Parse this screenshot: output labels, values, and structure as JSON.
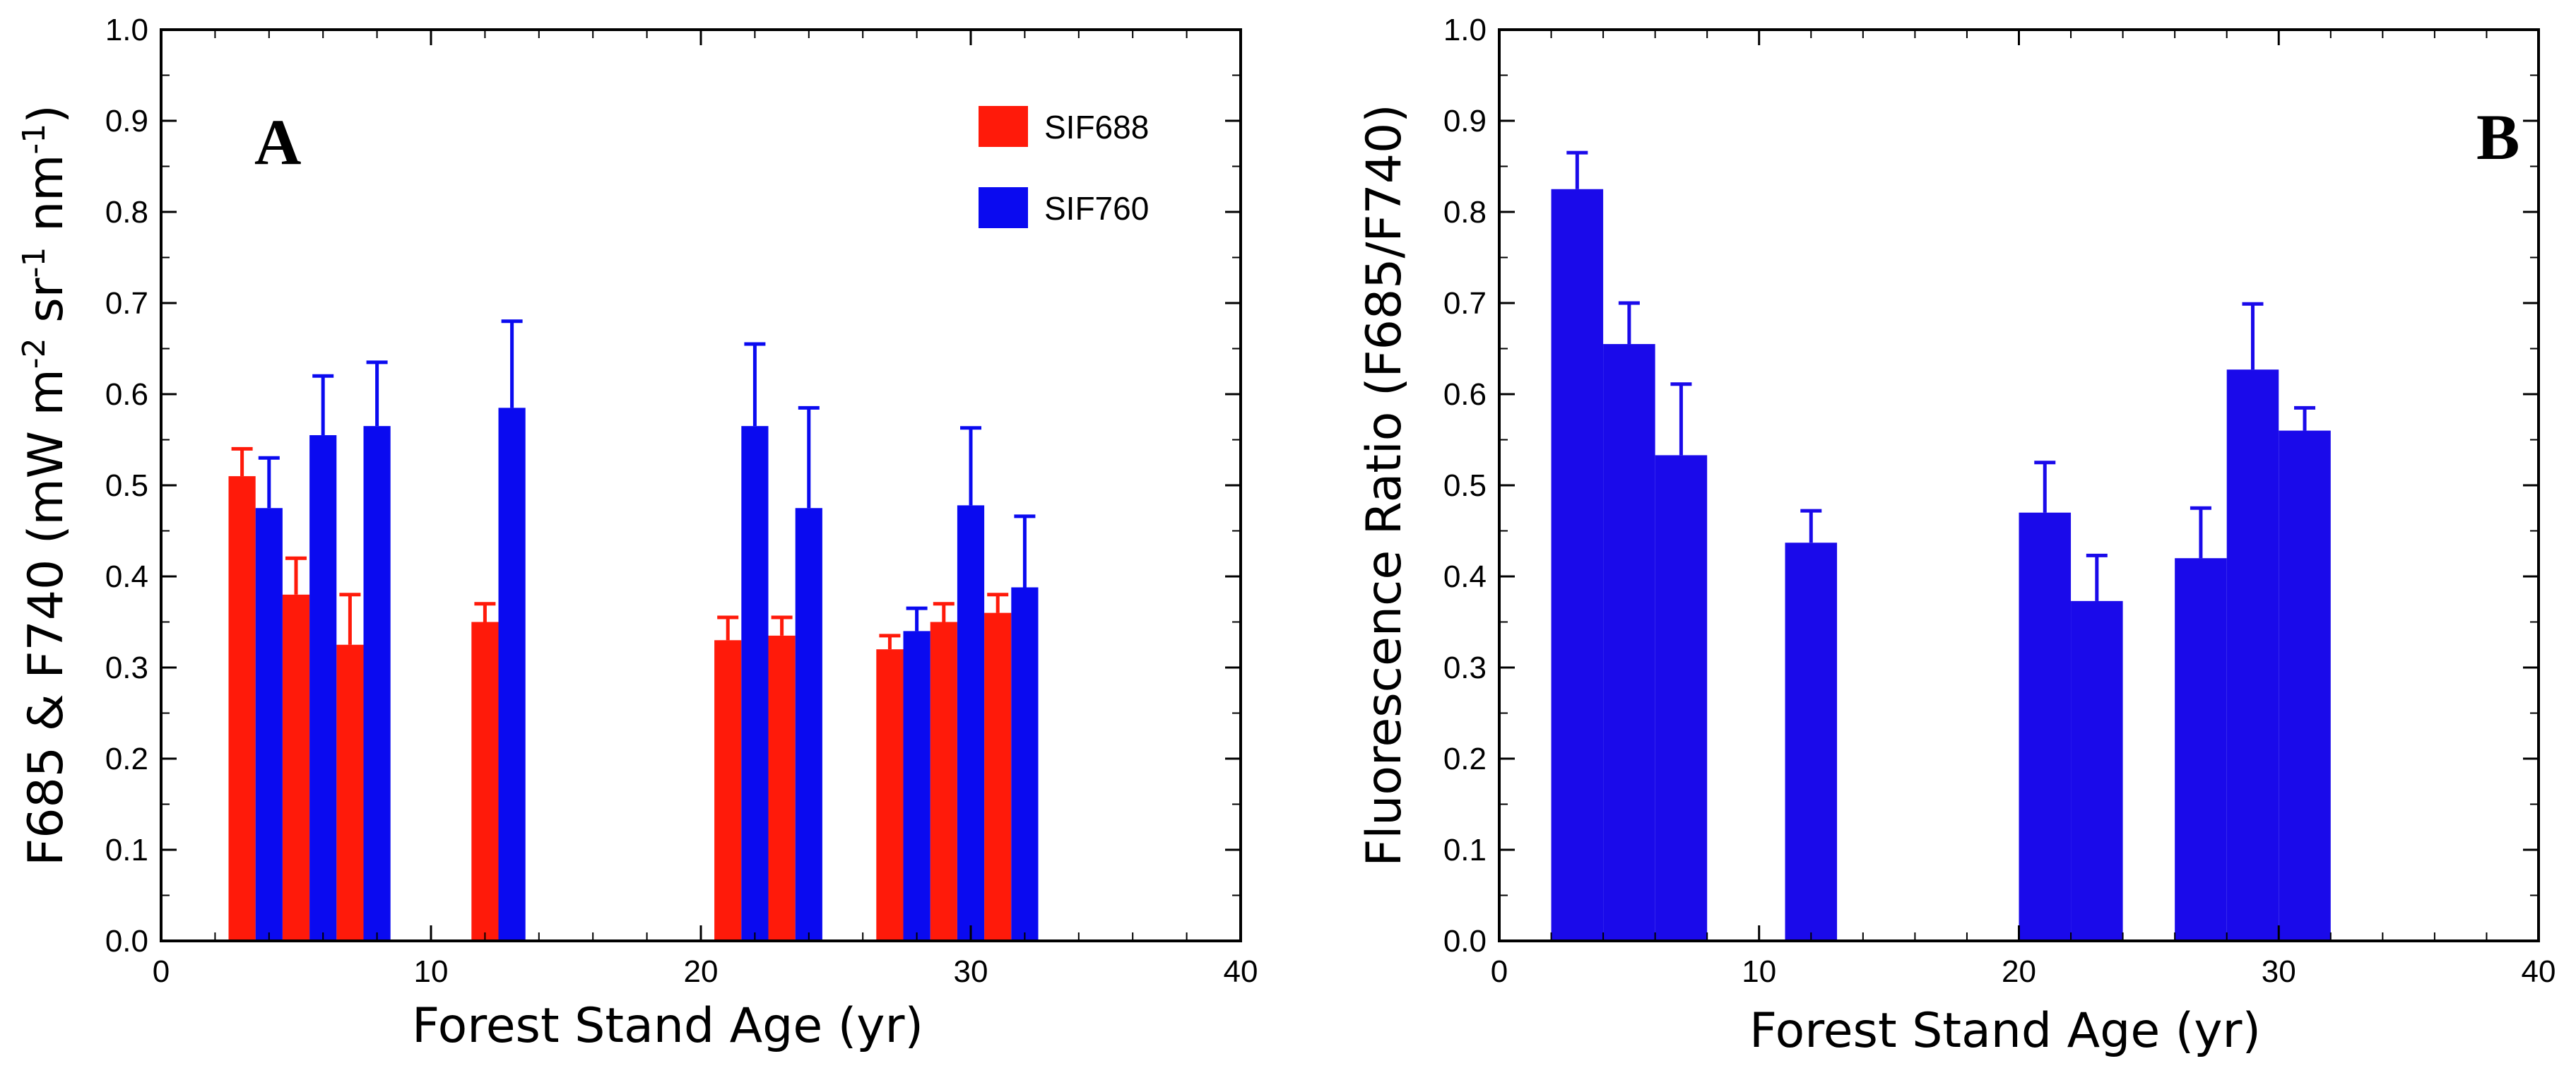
{
  "chart_data": [
    {
      "id": "A",
      "type": "bar",
      "panel_label": "A",
      "xlabel": "Forest Stand Age (yr)",
      "ylabel": "F685 & F740 (mW m⁻² sr⁻¹ nm⁻¹)",
      "xlim": [
        0,
        40
      ],
      "ylim": [
        0,
        1.0
      ],
      "xticks": [
        0,
        10,
        20,
        30,
        40
      ],
      "yticks": [
        0.0,
        0.1,
        0.2,
        0.3,
        0.4,
        0.5,
        0.6,
        0.7,
        0.8,
        0.9,
        1.0
      ],
      "legend": {
        "position": "top-right"
      },
      "bar_width": 1.0,
      "series": [
        {
          "name": "SIF688",
          "color": "#ff1a0a",
          "points": [
            {
              "x": 3,
              "y": 0.51,
              "err": 0.03
            },
            {
              "x": 5,
              "y": 0.38,
              "err": 0.04
            },
            {
              "x": 7,
              "y": 0.325,
              "err": 0.055
            },
            {
              "x": 12,
              "y": 0.35,
              "err": 0.02
            },
            {
              "x": 21,
              "y": 0.33,
              "err": 0.025
            },
            {
              "x": 23,
              "y": 0.335,
              "err": 0.02
            },
            {
              "x": 27,
              "y": 0.32,
              "err": 0.015
            },
            {
              "x": 29,
              "y": 0.35,
              "err": 0.02
            },
            {
              "x": 31,
              "y": 0.36,
              "err": 0.02
            }
          ]
        },
        {
          "name": "SIF760",
          "color": "#0a0af0",
          "points": [
            {
              "x": 4,
              "y": 0.475,
              "err": 0.055
            },
            {
              "x": 6,
              "y": 0.555,
              "err": 0.065
            },
            {
              "x": 8,
              "y": 0.565,
              "err": 0.07
            },
            {
              "x": 13,
              "y": 0.585,
              "err": 0.095
            },
            {
              "x": 22,
              "y": 0.565,
              "err": 0.09
            },
            {
              "x": 24,
              "y": 0.475,
              "err": 0.11
            },
            {
              "x": 28,
              "y": 0.34,
              "err": 0.025
            },
            {
              "x": 30,
              "y": 0.478,
              "err": 0.085
            },
            {
              "x": 32,
              "y": 0.388,
              "err": 0.078
            }
          ]
        }
      ]
    },
    {
      "id": "B",
      "type": "bar",
      "panel_label": "B",
      "xlabel": "Forest Stand Age (yr)",
      "ylabel": "Fluorescence Ratio (F685/F740)",
      "xlim": [
        0,
        40
      ],
      "ylim": [
        0,
        1.0
      ],
      "xticks": [
        0,
        10,
        20,
        30,
        40
      ],
      "yticks": [
        0.0,
        0.1,
        0.2,
        0.3,
        0.4,
        0.5,
        0.6,
        0.7,
        0.8,
        0.9,
        1.0
      ],
      "bar_width": 2.0,
      "series": [
        {
          "name": "F685/F740",
          "color": "#1a0aea",
          "points": [
            {
              "x": 3,
              "y": 0.825,
              "err": 0.04
            },
            {
              "x": 5,
              "y": 0.655,
              "err": 0.045
            },
            {
              "x": 7,
              "y": 0.533,
              "err": 0.078
            },
            {
              "x": 12,
              "y": 0.437,
              "err": 0.035
            },
            {
              "x": 21,
              "y": 0.47,
              "err": 0.055
            },
            {
              "x": 23,
              "y": 0.373,
              "err": 0.05
            },
            {
              "x": 27,
              "y": 0.42,
              "err": 0.055
            },
            {
              "x": 29,
              "y": 0.627,
              "err": 0.072
            },
            {
              "x": 31,
              "y": 0.56,
              "err": 0.025
            }
          ]
        }
      ]
    }
  ]
}
